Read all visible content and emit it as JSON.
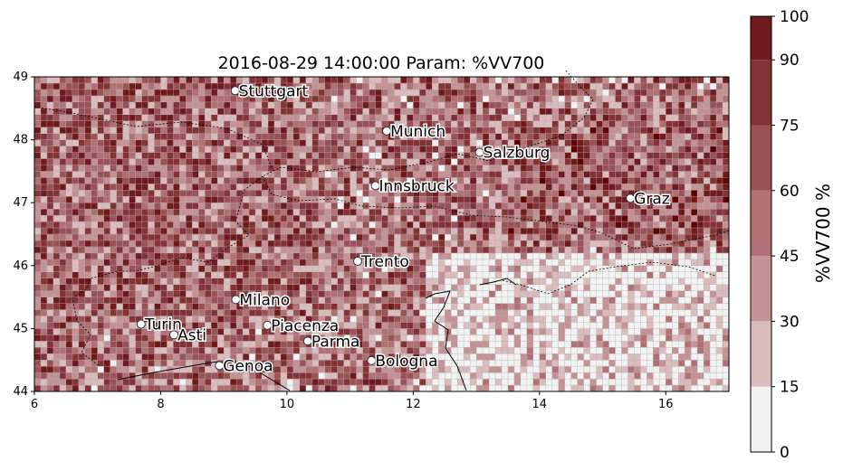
{
  "chart_data": {
    "type": "heatmap",
    "title": "2016-08-29 14:00:00 Param: %VV700",
    "xlabel": "",
    "ylabel": "",
    "xlim": [
      6,
      17
    ],
    "ylim": [
      44,
      49
    ],
    "x_ticks": [
      "6",
      "8",
      "10",
      "12",
      "14",
      "16"
    ],
    "y_ticks": [
      "44",
      "45",
      "46",
      "47",
      "48",
      "49"
    ],
    "grid": true,
    "grid_resolution_deg": 0.1,
    "colorbar": {
      "label": "%VV700  %",
      "ticks": [
        "0",
        "15",
        "30",
        "45",
        "60",
        "75",
        "90",
        "100"
      ],
      "levels": [
        0,
        15,
        30,
        45,
        60,
        75,
        90,
        100
      ],
      "colors": [
        "#f2f2f2",
        "#dbbcbd",
        "#c49294",
        "#b07074",
        "#9a5256",
        "#853236",
        "#701a1e",
        "#600000"
      ]
    },
    "cities": [
      {
        "name": "Stuttgart",
        "lon": 9.18,
        "lat": 48.78
      },
      {
        "name": "Munich",
        "lon": 11.58,
        "lat": 48.14
      },
      {
        "name": "Salzburg",
        "lon": 13.05,
        "lat": 47.8
      },
      {
        "name": "Innsbruck",
        "lon": 11.4,
        "lat": 47.27
      },
      {
        "name": "Graz",
        "lon": 15.44,
        "lat": 47.07
      },
      {
        "name": "Trento",
        "lon": 11.12,
        "lat": 46.07
      },
      {
        "name": "Milano",
        "lon": 9.19,
        "lat": 45.46
      },
      {
        "name": "Turin",
        "lon": 7.69,
        "lat": 45.07
      },
      {
        "name": "Asti",
        "lon": 8.21,
        "lat": 44.9
      },
      {
        "name": "Piacenza",
        "lon": 9.69,
        "lat": 45.05
      },
      {
        "name": "Parma",
        "lon": 10.33,
        "lat": 44.8
      },
      {
        "name": "Genoa",
        "lon": 8.93,
        "lat": 44.41
      },
      {
        "name": "Bologna",
        "lon": 11.34,
        "lat": 44.49
      }
    ]
  }
}
